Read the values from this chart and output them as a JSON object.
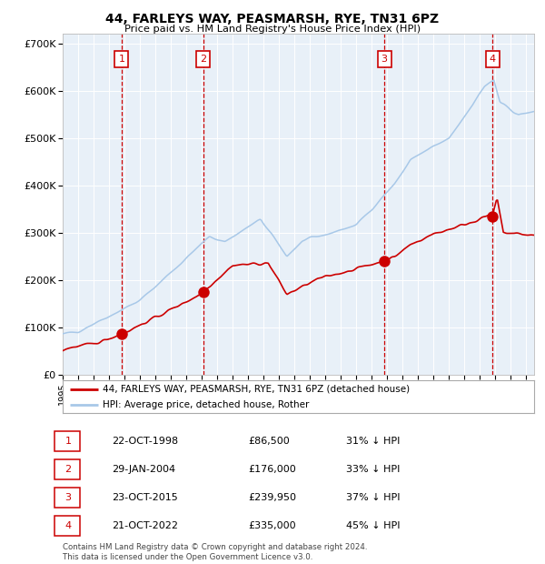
{
  "title1": "44, FARLEYS WAY, PEASMARSH, RYE, TN31 6PZ",
  "title2": "Price paid vs. HM Land Registry's House Price Index (HPI)",
  "sales": [
    {
      "label": "1",
      "date": "22-OCT-1998",
      "price": 86500,
      "year": 1998.81,
      "pct": "31% ↓ HPI"
    },
    {
      "label": "2",
      "date": "29-JAN-2004",
      "price": 176000,
      "year": 2004.08,
      "pct": "33% ↓ HPI"
    },
    {
      "label": "3",
      "date": "23-OCT-2015",
      "price": 239950,
      "year": 2015.81,
      "pct": "37% ↓ HPI"
    },
    {
      "label": "4",
      "date": "21-OCT-2022",
      "price": 335000,
      "year": 2022.81,
      "pct": "45% ↓ HPI"
    }
  ],
  "legend_line1": "44, FARLEYS WAY, PEASMARSH, RYE, TN31 6PZ (detached house)",
  "legend_line2": "HPI: Average price, detached house, Rother",
  "footer1": "Contains HM Land Registry data © Crown copyright and database right 2024.",
  "footer2": "This data is licensed under the Open Government Licence v3.0.",
  "hpi_color": "#a8c8e8",
  "sale_color": "#cc0000",
  "bg_shade_color": "#e8f0f8",
  "vline_color": "#cc0000",
  "ylim_max": 720000,
  "xmin": 1995.0,
  "xmax": 2025.5,
  "table_rows": [
    {
      "num": "1",
      "date": "22-OCT-1998",
      "price": "£86,500",
      "pct": "31% ↓ HPI"
    },
    {
      "num": "2",
      "date": "29-JAN-2004",
      "price": "£176,000",
      "pct": "33% ↓ HPI"
    },
    {
      "num": "3",
      "date": "23-OCT-2015",
      "price": "£239,950",
      "pct": "37% ↓ HPI"
    },
    {
      "num": "4",
      "date": "21-OCT-2022",
      "price": "£335,000",
      "pct": "45% ↓ HPI"
    }
  ]
}
